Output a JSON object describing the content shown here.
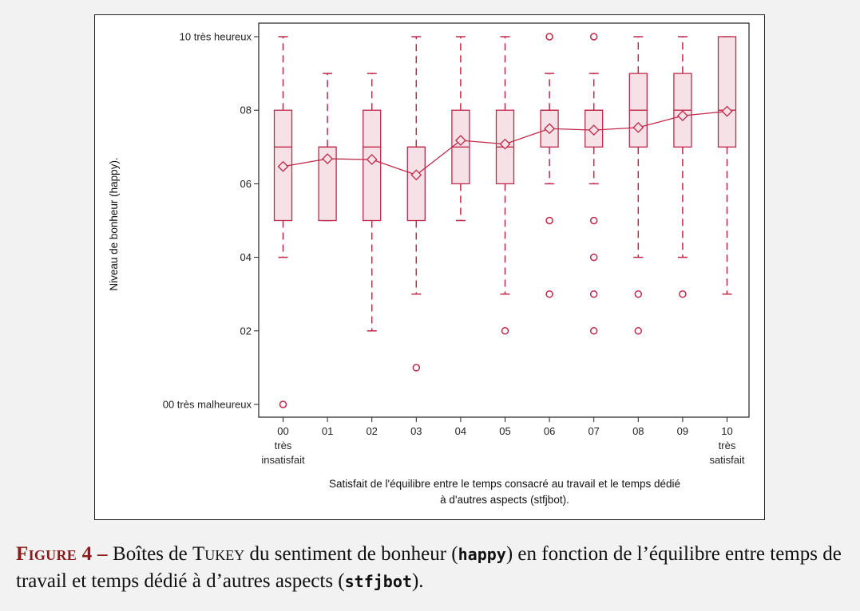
{
  "caption": {
    "label": "Figure 4 –",
    "text_1": " Boîtes de ",
    "tukey": "Tukey",
    "text_2": " du sentiment de bonheur (",
    "var_y": "happy",
    "text_3": ") en fonction de l’équilibre entre temps de travail et temps dédié à d’autres aspects (",
    "var_x": "stfjbot",
    "text_4": ")."
  },
  "colors": {
    "accent": "#c0284a",
    "box_fill": "#f5e1e6",
    "frame": "#222222"
  },
  "chart_data": {
    "type": "box",
    "title": "",
    "xlabel": "Satisfait de l'équilibre entre le temps consacré au travail et le temps dédié à d'autres aspects (stfjbot).",
    "xlabel_lines": [
      "Satisfait de l'équilibre entre le temps consacré au travail et le temps dédié",
      "à d'autres aspects (stfjbot)."
    ],
    "ylabel": "Niveau de bonheur (happy).",
    "ylim": [
      0,
      10
    ],
    "yticks": [
      {
        "value": 10,
        "label": "10 très heureux"
      },
      {
        "value": 8,
        "label": "08"
      },
      {
        "value": 6,
        "label": "06"
      },
      {
        "value": 4,
        "label": "04"
      },
      {
        "value": 2,
        "label": "02"
      },
      {
        "value": 0,
        "label": "00 très malheureux"
      }
    ],
    "categories": [
      {
        "x": 0,
        "lines": [
          "00",
          "très",
          "insatisfait"
        ]
      },
      {
        "x": 1,
        "lines": [
          "01"
        ]
      },
      {
        "x": 2,
        "lines": [
          "02"
        ]
      },
      {
        "x": 3,
        "lines": [
          "03"
        ]
      },
      {
        "x": 4,
        "lines": [
          "04"
        ]
      },
      {
        "x": 5,
        "lines": [
          "05"
        ]
      },
      {
        "x": 6,
        "lines": [
          "06"
        ]
      },
      {
        "x": 7,
        "lines": [
          "07"
        ]
      },
      {
        "x": 8,
        "lines": [
          "08"
        ]
      },
      {
        "x": 9,
        "lines": [
          "09"
        ]
      },
      {
        "x": 10,
        "lines": [
          "10",
          "très",
          "satisfait"
        ]
      }
    ],
    "boxes": [
      {
        "x": 0,
        "whisker_low": 4,
        "q1": 5,
        "median": 7,
        "q3": 8,
        "whisker_high": 10,
        "mean": 6.47,
        "outliers": [
          0
        ]
      },
      {
        "x": 1,
        "whisker_low": 5,
        "q1": 5,
        "median": 7,
        "q3": 7,
        "whisker_high": 9,
        "mean": 6.68,
        "outliers": []
      },
      {
        "x": 2,
        "whisker_low": 2,
        "q1": 5,
        "median": 7,
        "q3": 8,
        "whisker_high": 9,
        "mean": 6.66,
        "outliers": []
      },
      {
        "x": 3,
        "whisker_low": 3,
        "q1": 5,
        "median": 7,
        "q3": 7,
        "whisker_high": 10,
        "mean": 6.24,
        "outliers": [
          1
        ]
      },
      {
        "x": 4,
        "whisker_low": 5,
        "q1": 6,
        "median": 7,
        "q3": 8,
        "whisker_high": 10,
        "mean": 7.18,
        "outliers": []
      },
      {
        "x": 5,
        "whisker_low": 3,
        "q1": 6,
        "median": 7,
        "q3": 8,
        "whisker_high": 10,
        "mean": 7.08,
        "outliers": [
          2
        ]
      },
      {
        "x": 6,
        "whisker_low": 6,
        "q1": 7,
        "median": 8,
        "q3": 8,
        "whisker_high": 9,
        "mean": 7.5,
        "outliers": [
          10,
          5,
          3
        ]
      },
      {
        "x": 7,
        "whisker_low": 6,
        "q1": 7,
        "median": 8,
        "q3": 8,
        "whisker_high": 9,
        "mean": 7.46,
        "outliers": [
          10,
          5,
          4,
          3,
          2
        ]
      },
      {
        "x": 8,
        "whisker_low": 4,
        "q1": 7,
        "median": 8,
        "q3": 9,
        "whisker_high": 10,
        "mean": 7.53,
        "outliers": [
          3,
          2
        ]
      },
      {
        "x": 9,
        "whisker_low": 4,
        "q1": 7,
        "median": 8,
        "q3": 9,
        "whisker_high": 10,
        "mean": 7.85,
        "outliers": [
          3
        ]
      },
      {
        "x": 10,
        "whisker_low": 3,
        "q1": 7,
        "median": 8,
        "q3": 10,
        "whisker_high": 10,
        "mean": 7.97,
        "outliers": []
      }
    ],
    "mean_line": true,
    "legend": "none",
    "grid": false
  }
}
